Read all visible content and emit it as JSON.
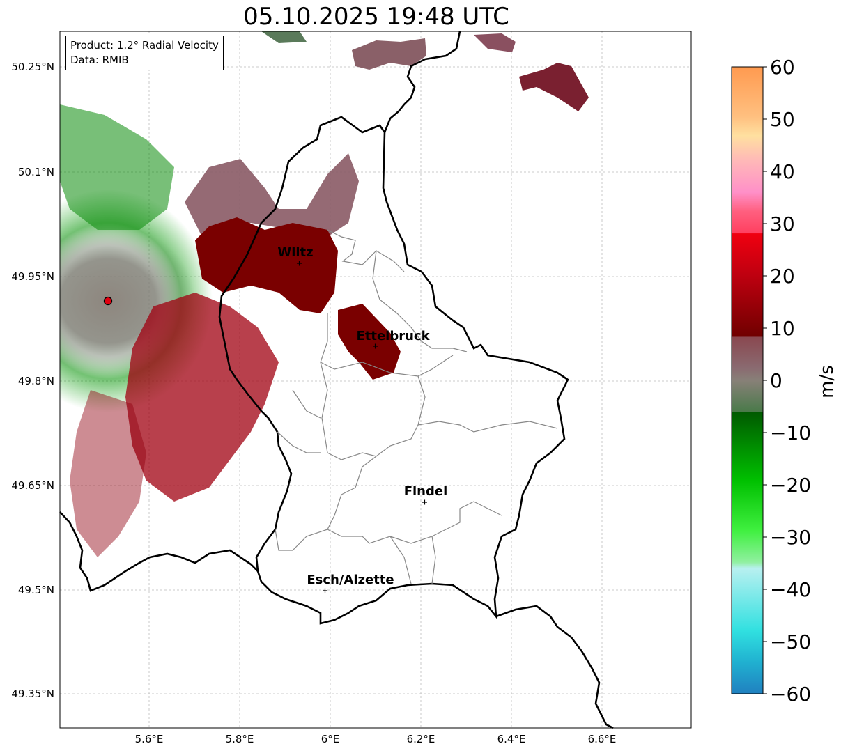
{
  "title": "05.10.2025 19:48 UTC",
  "info": {
    "product": "Product: 1.2° Radial Velocity",
    "data": "Data: RMIB"
  },
  "axes": {
    "lat_ticks": [
      "50.25°N",
      "50.1°N",
      "49.95°N",
      "49.8°N",
      "49.65°N",
      "49.5°N",
      "49.35°N"
    ],
    "lon_ticks": [
      "5.6°E",
      "5.8°E",
      "6°E",
      "6.2°E",
      "6.4°E",
      "6.6°E"
    ]
  },
  "cities": [
    {
      "name": "Wiltz",
      "lon": 5.935,
      "lat": 49.965
    },
    {
      "name": "Ettelbruck",
      "lon": 6.105,
      "lat": 49.848
    },
    {
      "name": "Findel",
      "lon": 6.21,
      "lat": 49.625
    },
    {
      "name": "Esch/Alzette",
      "lon": 5.99,
      "lat": 49.497
    }
  ],
  "radar_site": {
    "lon": 5.505,
    "lat": 49.915
  },
  "colorbar": {
    "label": "m/s",
    "range": [
      -60,
      60
    ],
    "ticks": [
      "60",
      "50",
      "40",
      "30",
      "20",
      "10",
      "0",
      "−10",
      "−20",
      "−30",
      "−40",
      "−50",
      "−60"
    ],
    "colors": {
      "orange": "#ff9a50",
      "peach": "#ffd8a0",
      "pink": "#ff90c8",
      "salmon": "#ff5070",
      "red": "#f00010",
      "darkred": "#7a0000",
      "mauve": "#8a5a65",
      "gray": "#888078",
      "darkgreen": "#1a6a1a",
      "green": "#00cc00",
      "lightgreen": "#90f0a0",
      "lightcyan": "#b0f0f0",
      "cyan": "#30e0e0",
      "blue": "#2080c0"
    }
  }
}
